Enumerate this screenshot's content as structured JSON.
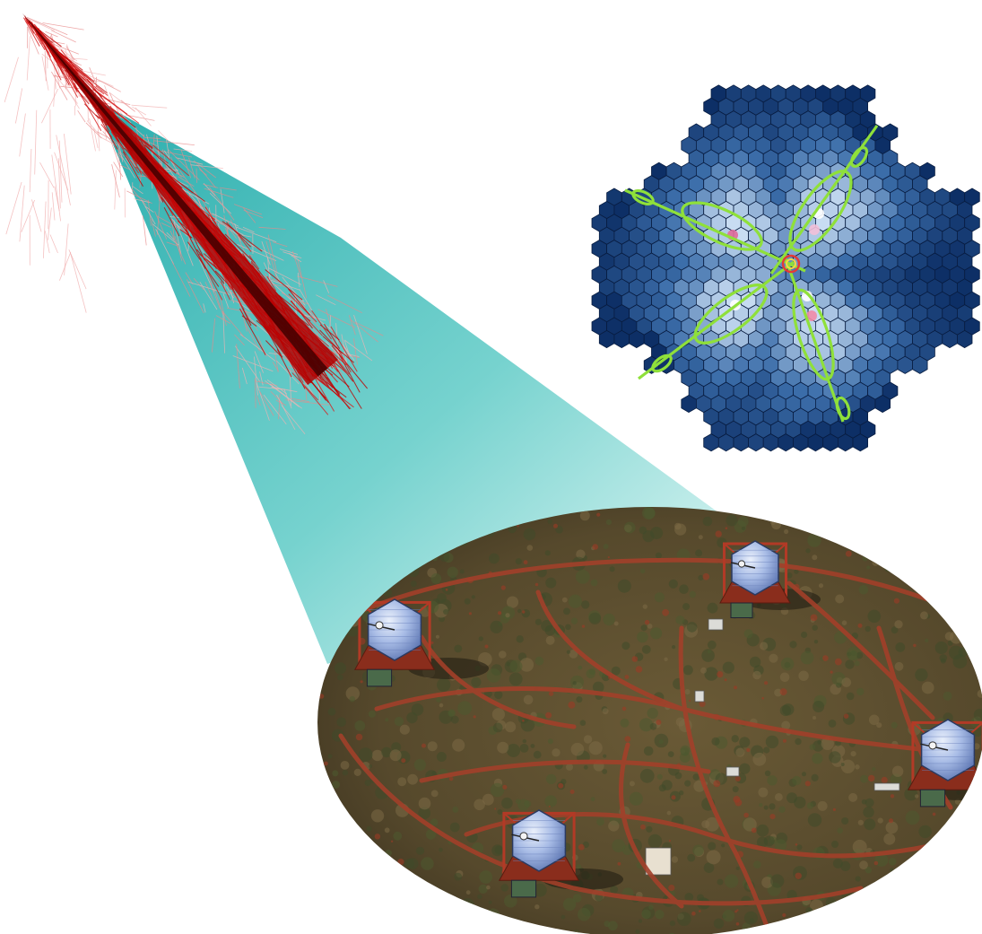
{
  "figure": {
    "components": [
      "air-shower-simulation",
      "camera-image",
      "telescope-array-photo"
    ]
  },
  "colors": {
    "background": "#ffffff",
    "shower_core": "#b00000",
    "shower_particles": "#e35a5a",
    "cone": "#3fbfbf",
    "camera_dark": "#0d2f66",
    "camera_light": "#bcd3ee",
    "hillas_ellipse": "#8fe03a",
    "ground": "#5b4a2c",
    "dirt_road": "#a2402a",
    "mirror": "#9fb6e6",
    "structure": "#b23a26"
  },
  "camera": {
    "shape": "hexagonal-pixel-camera",
    "ellipse_count": 4
  },
  "array": {
    "telescope_count": 4
  }
}
